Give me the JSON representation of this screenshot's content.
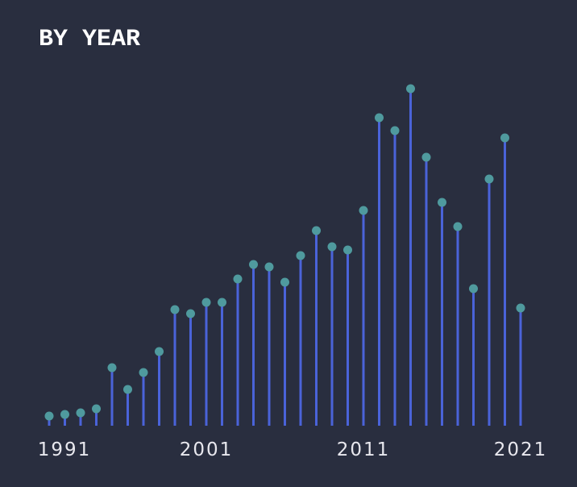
{
  "chart_data": {
    "type": "lollipop",
    "title": "BY YEAR",
    "categories": [
      "1991",
      null,
      null,
      null,
      null,
      null,
      null,
      null,
      null,
      null,
      "2001",
      null,
      null,
      null,
      null,
      null,
      null,
      null,
      null,
      null,
      "2011",
      null,
      null,
      null,
      null,
      null,
      null,
      null,
      null,
      null,
      "2021"
    ],
    "values": [
      12,
      14,
      16,
      21,
      72,
      45,
      66,
      92,
      144,
      139,
      153,
      153,
      182,
      200,
      197,
      178,
      211,
      242,
      222,
      218,
      267,
      382,
      366,
      418,
      333,
      277,
      247,
      170,
      306,
      357,
      146
    ],
    "color": "#4a63d9",
    "dot_color": "#4f9a9e",
    "ylim": [
      0,
      430
    ]
  }
}
